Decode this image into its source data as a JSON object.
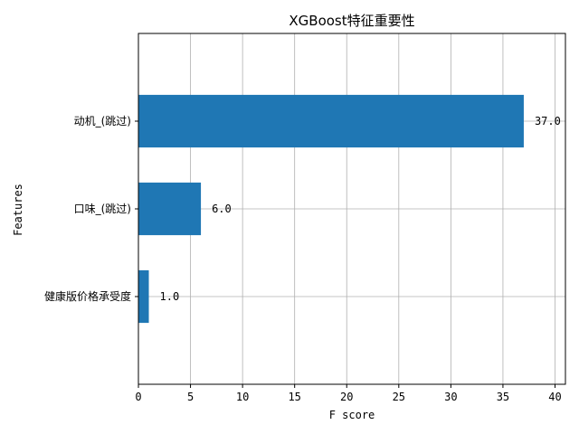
{
  "chart_data": {
    "type": "bar",
    "orientation": "horizontal",
    "title": "XGBoost特征重要性",
    "xlabel": "F score",
    "ylabel": "Features",
    "categories": [
      "动机_(跳过)",
      "口味_(跳过)",
      "健康版价格承受度"
    ],
    "values": [
      37,
      6,
      1
    ],
    "data_labels": [
      "37.0",
      "6.0",
      "1.0"
    ],
    "xlim": [
      0,
      41
    ],
    "xticks": [
      0,
      5,
      10,
      15,
      20,
      25,
      30,
      35,
      40
    ],
    "grid": true,
    "bar_color": "#1f77b4"
  }
}
